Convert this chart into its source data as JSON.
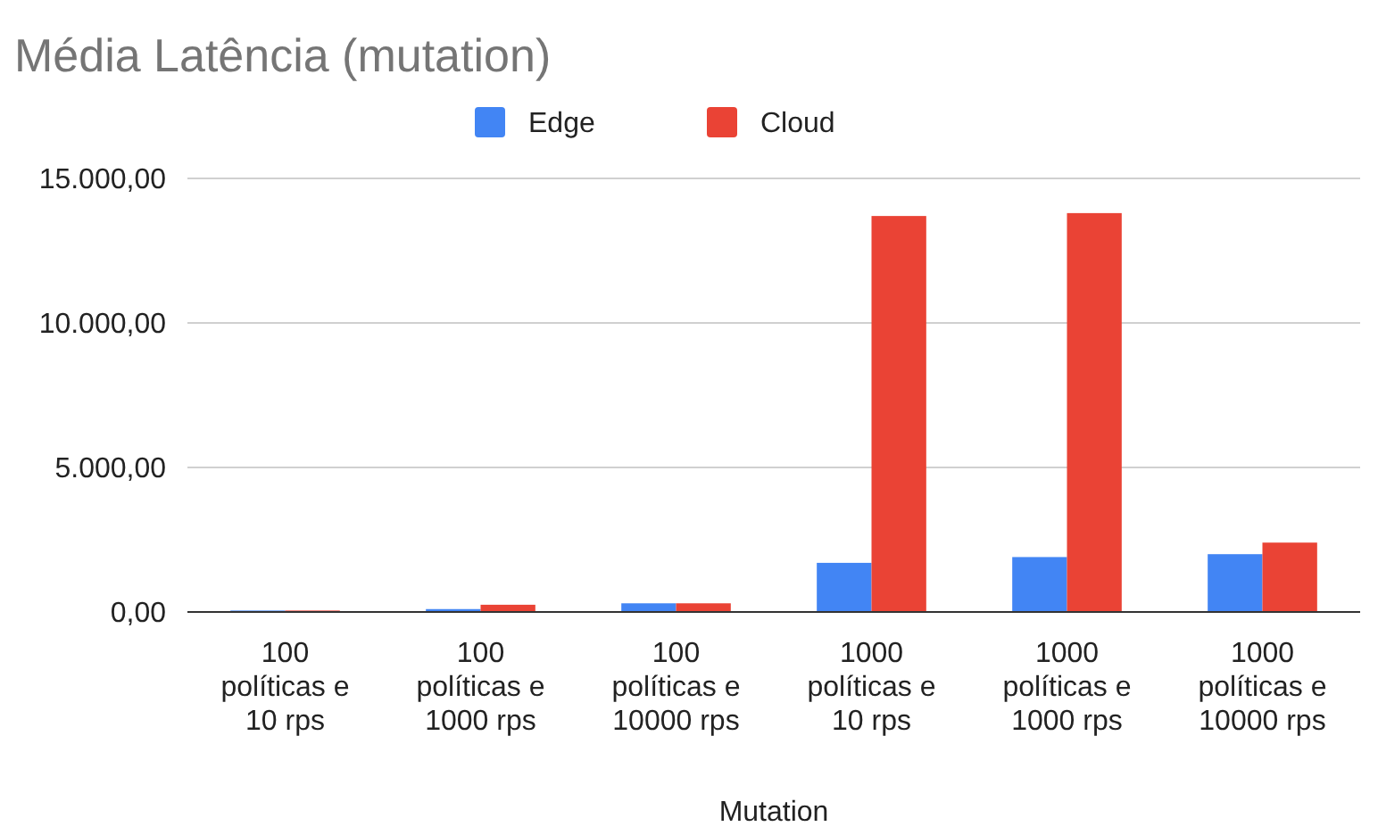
{
  "chart_data": {
    "type": "bar",
    "title": "Média Latência (mutation)",
    "xlabel": "Mutation",
    "categories": [
      "100 políticas e 10 rps",
      "100 políticas e 1000 rps",
      "100 políticas e 10000 rps",
      "1000 políticas e 10 rps",
      "1000 políticas e 1000 rps",
      "1000 políticas e 10000 rps"
    ],
    "series": [
      {
        "name": "Edge",
        "color": "#4285f4",
        "values": [
          50,
          100,
          300,
          1700,
          1900,
          2000
        ]
      },
      {
        "name": "Cloud",
        "color": "#ea4335",
        "values": [
          50,
          250,
          300,
          13700,
          13800,
          2400
        ]
      }
    ],
    "ylim": [
      0,
      15000
    ],
    "yticks": [
      {
        "value": 0,
        "label": "0,00"
      },
      {
        "value": 5000,
        "label": "5.000,00"
      },
      {
        "value": 10000,
        "label": "10.000,00"
      },
      {
        "value": 15000,
        "label": "15.000,00"
      }
    ],
    "grid": "y",
    "legend": "top"
  }
}
